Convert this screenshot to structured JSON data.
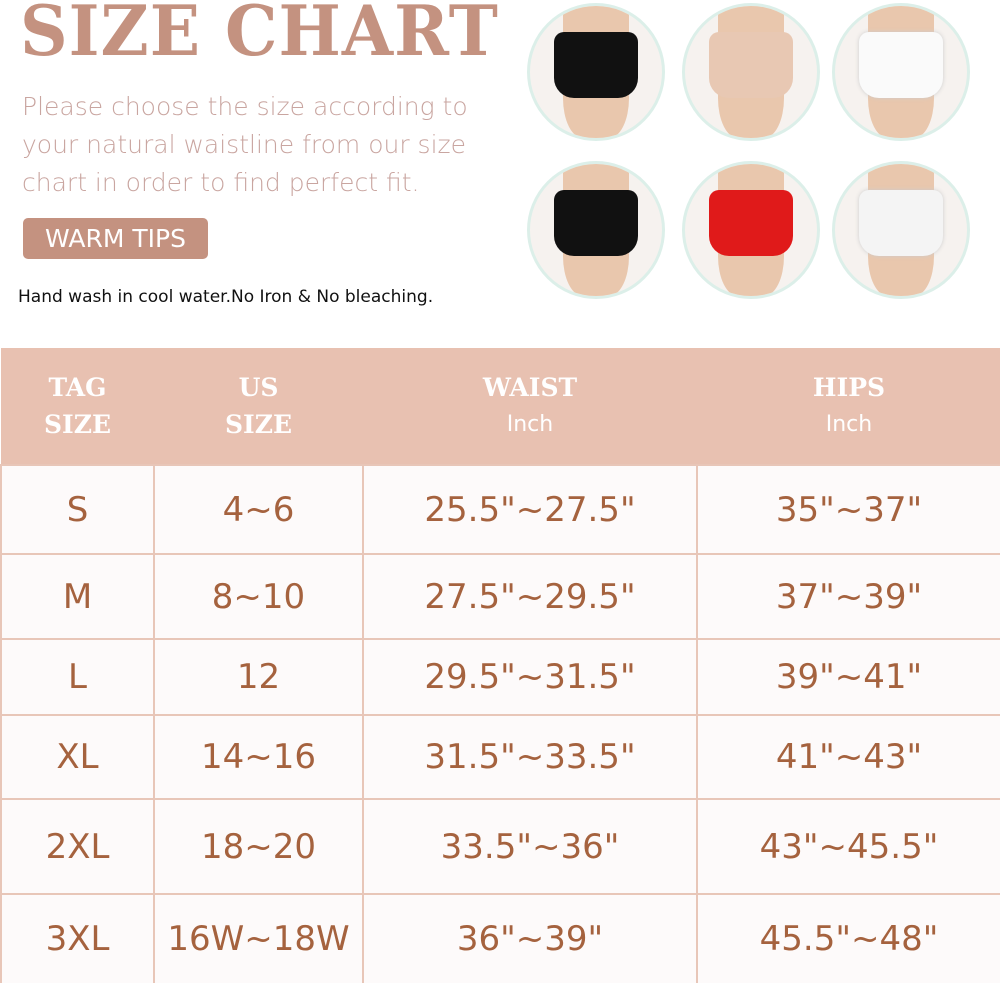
{
  "title": "SIZE CHART",
  "intro": "Please choose the size according to your natural waistline from our size chart in order to find perfect fit.",
  "tips_label": "WARM TIPS",
  "care": "Hand wash in cool water.No Iron & No bleaching.",
  "colors": {
    "accent": "#c49280",
    "header_bg": "#e8c1b1",
    "cell_text": "#a5623e"
  },
  "photos": [
    {
      "name": "black-shorts",
      "color": "#111111"
    },
    {
      "name": "nude-shorts",
      "color": "#e8c8b3"
    },
    {
      "name": "white-shorts",
      "color": "#fafafa"
    },
    {
      "name": "floral-dress-shorts",
      "color": "#111111"
    },
    {
      "name": "red-dress",
      "color": "#e01a1a"
    },
    {
      "name": "white-shorts-lace",
      "color": "#f4f4f4"
    }
  ],
  "table": {
    "headers": [
      {
        "line1": "TAG",
        "line2": "SIZE"
      },
      {
        "line1": "US",
        "line2": "SIZE"
      },
      {
        "line1": "WAIST",
        "unit": "Inch"
      },
      {
        "line1": "HIPS",
        "unit": "Inch"
      }
    ],
    "rows": [
      [
        "S",
        "4~6",
        "25.5\"~27.5\"",
        "35\"~37\""
      ],
      [
        "M",
        "8~10",
        "27.5\"~29.5\"",
        "37\"~39\""
      ],
      [
        "L",
        "12",
        "29.5\"~31.5\"",
        "39\"~41\""
      ],
      [
        "XL",
        "14~16",
        "31.5\"~33.5\"",
        "41\"~43\""
      ],
      [
        "2XL",
        "18~20",
        "33.5\"~36\"",
        "43\"~45.5\""
      ],
      [
        "3XL",
        "16W~18W",
        "36\"~39\"",
        "45.5\"~48\""
      ]
    ]
  }
}
